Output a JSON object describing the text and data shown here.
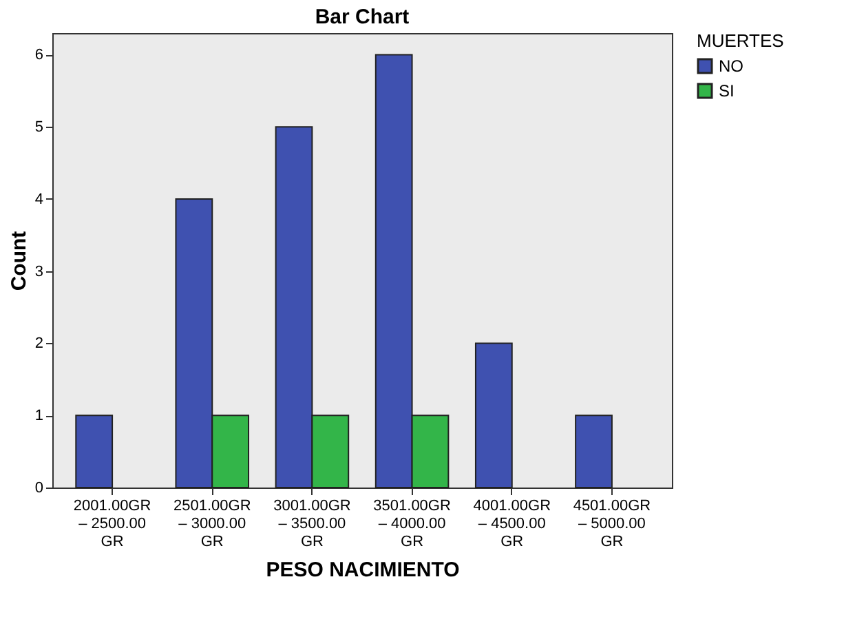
{
  "chart_data": {
    "type": "bar",
    "title": "Bar Chart",
    "xlabel": "PESO NACIMIENTO",
    "ylabel": "Count",
    "legend_title": "MUERTES",
    "categories": [
      "2001.00GR – 2500.00 GR",
      "2501.00GR – 3000.00 GR",
      "3001.00GR – 3500.00 GR",
      "3501.00GR – 4000.00 GR",
      "4001.00GR – 4500.00 GR",
      "4501.00GR – 5000.00 GR"
    ],
    "series": [
      {
        "name": "NO",
        "color": "#3f51b0",
        "values": [
          1,
          4,
          5,
          6,
          2,
          1
        ]
      },
      {
        "name": "SI",
        "color": "#33b549",
        "values": [
          null,
          1,
          1,
          1,
          null,
          null
        ]
      }
    ],
    "ylim": [
      0,
      6.3
    ],
    "yticks": [
      0,
      1,
      2,
      3,
      4,
      5,
      6
    ],
    "grid": false,
    "legend": "top right"
  }
}
